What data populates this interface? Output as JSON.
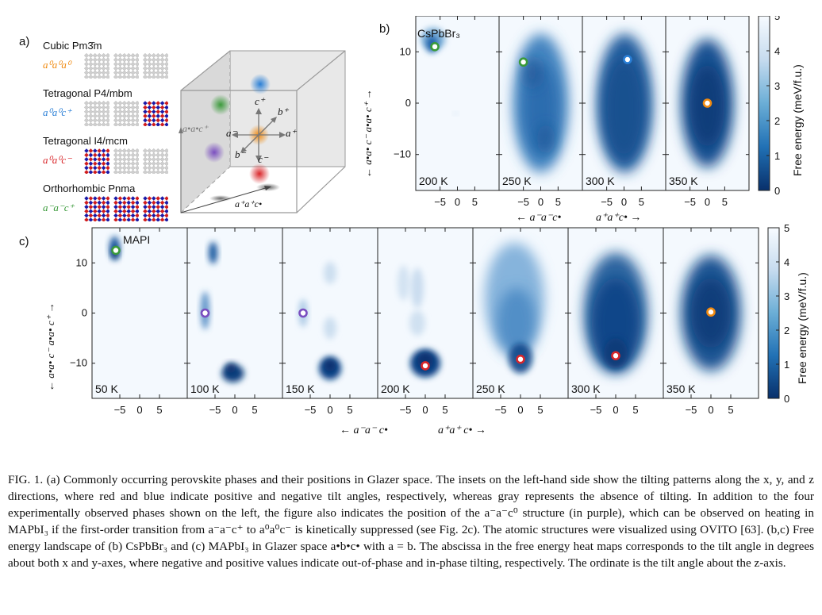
{
  "panel_a": {
    "label": "a)",
    "phases": [
      {
        "name": "Cubic Pm3̄m",
        "glazer": "a⁰a⁰a⁰",
        "color": "#f08a10",
        "pattern": [
          "gray",
          "gray",
          "gray"
        ]
      },
      {
        "name": "Tetragonal P4/mbm",
        "glazer": "a⁰a⁰c⁺",
        "color": "#2a7fd6",
        "pattern": [
          "gray",
          "gray",
          "rb"
        ]
      },
      {
        "name": "Tetragonal I4/mcm",
        "glazer": "a⁰a⁰c⁻",
        "color": "#d9262a",
        "pattern": [
          "rb",
          "gray",
          "gray"
        ]
      },
      {
        "name": "Orthorhombic Pnma",
        "glazer": "a⁻a⁻c⁺",
        "color": "#3a9a3a",
        "pattern": [
          "rb",
          "rb",
          "rb"
        ]
      }
    ],
    "cube_labels": {
      "c_plus": "c⁺",
      "b_plus": "b⁺",
      "a_minus": "a⁻",
      "a_plus": "a⁺",
      "b_minus": "b⁻",
      "c_minus": "c⁻",
      "side": "a•a•c⁺",
      "bottom": "a⁺a⁺c•"
    }
  },
  "panel_b": {
    "label": "b)",
    "material": "CsPbBr₃",
    "temps": [
      "200 K",
      "250 K",
      "300 K",
      "350 K"
    ],
    "yaxis": "← a•a• c⁻   a•a• c⁺ →",
    "xaxis_left": "← a⁻a⁻c•",
    "xaxis_right": "a⁺a⁺c• →",
    "yticks": [
      "10",
      "0",
      "−10"
    ],
    "xticks": [
      "−5",
      "0",
      "5"
    ],
    "colorbar_label": "Free energy (meV/f.u.)",
    "colorbar_ticks": [
      "5",
      "4",
      "3",
      "2",
      "1",
      "0"
    ]
  },
  "panel_c": {
    "label": "c)",
    "material": "MAPI",
    "temps": [
      "50 K",
      "100 K",
      "150 K",
      "200 K",
      "250 K",
      "300 K",
      "350 K"
    ],
    "yaxis": "← a•a• c⁻   a•a• c⁺ →",
    "xaxis_left": "← a⁻a⁻ c•",
    "xaxis_right": "a⁺a⁺ c• →",
    "yticks": [
      "10",
      "0",
      "−10"
    ],
    "xticks": [
      "−5",
      "0",
      "5"
    ],
    "colorbar_label": "Free energy (meV/f.u.)",
    "colorbar_ticks": [
      "5",
      "4",
      "3",
      "2",
      "1",
      "0"
    ]
  },
  "caption": "FIG. 1. (a) Commonly occurring perovskite phases and their positions in Glazer space. The insets on the left-hand side show the tilting patterns along the x, y, and z directions, where red and blue indicate positive and negative tilt angles, respectively, whereas gray represents the absence of tilting. In addition to the four experimentally observed phases shown on the left, the figure also indicates the position of the a⁻a⁻c⁰ structure (in purple), which can be observed on heating in MAPbI₃ if the first-order transition from a⁻a⁻c⁺ to a⁰a⁰c⁻ is kinetically suppressed (see Fig. 2c). The atomic structures were visualized using OVITO [63]. (b,c) Free energy landscape of (b) CsPbBr₃ and (c) MAPbI₃ in Glazer space a•b•c• with a = b. The abscissa in the free energy heat maps corresponds to the tilt angle in degrees about both x and y-axes, where negative and positive values indicate out-of-phase and in-phase tilting, respectively. The ordinate is the tilt angle about the z-axis."
}
